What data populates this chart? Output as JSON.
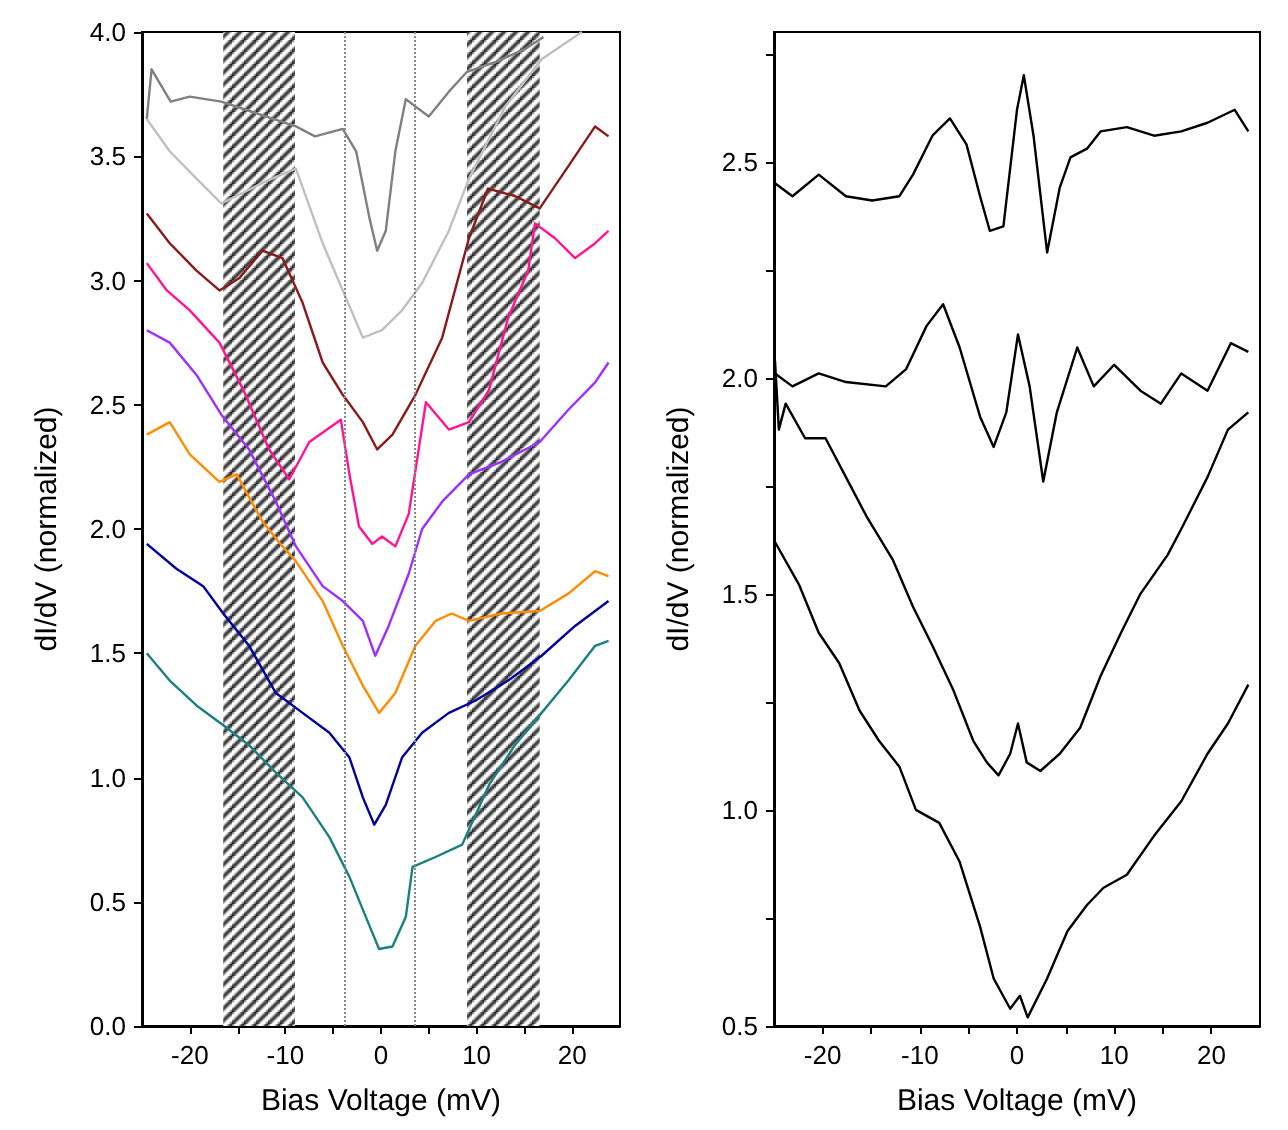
{
  "chart_data": [
    {
      "type": "line",
      "xlabel": "Bias Voltage (mV)",
      "ylabel": "dI/dV (normalized)",
      "xlim": [
        -25,
        25
      ],
      "ylim": [
        0,
        4
      ],
      "xticks": [
        -20,
        {
          "value": -15,
          "label": null
        },
        -10,
        {
          "value": -5,
          "label": null
        },
        0,
        {
          "value": 5,
          "label": null
        },
        10,
        {
          "value": 15,
          "label": null
        },
        20
      ],
      "yticks": [
        {
          "value": 0,
          "label": "0.0"
        },
        0.5,
        {
          "value": 1,
          "label": "1.0"
        },
        1.5,
        {
          "value": 2,
          "label": "2.0"
        },
        2.5,
        {
          "value": 3,
          "label": "3.0"
        },
        3.5,
        {
          "value": 4,
          "label": "4.0"
        }
      ],
      "grid": false,
      "marker": "none",
      "line_style": "solid",
      "bands": [
        {
          "axis": "x",
          "from": -16.5,
          "to": -9,
          "color": "#222222"
        },
        {
          "axis": "x",
          "from": 9,
          "to": 16.6,
          "color": "#222222"
        }
      ],
      "ref_lines": [
        {
          "axis": "x",
          "value": -3.9,
          "color": "#888888",
          "line_style": "dotted"
        },
        {
          "axis": "x",
          "value": 3.6,
          "color": "#888888",
          "line_style": "dotted"
        }
      ],
      "series": [
        {
          "color": "#808080",
          "x": [
            -24.5,
            -24,
            -22,
            -20,
            -16.7,
            -8.9,
            -6.9,
            -4,
            -2.6,
            -1.2,
            -0.4,
            0.5,
            1.5,
            2.6,
            3.6,
            5,
            7.1,
            9,
            12,
            15,
            17
          ],
          "values": [
            3.65,
            3.85,
            3.72,
            3.74,
            3.72,
            3.62,
            3.58,
            3.61,
            3.52,
            3.25,
            3.12,
            3.2,
            3.52,
            3.73,
            3.7,
            3.66,
            3.76,
            3.84,
            3.88,
            3.93,
            3.98
          ]
        },
        {
          "color": "#c0c0c0",
          "x": [
            -24.5,
            -22.1,
            -19.3,
            -16.7,
            -12,
            -8.9,
            -6.1,
            -4,
            -1.9,
            0.1,
            2.2,
            4.3,
            7.1,
            9.2,
            13,
            16.8,
            21
          ],
          "values": [
            3.65,
            3.52,
            3.41,
            3.31,
            3.4,
            3.45,
            3.15,
            2.96,
            2.77,
            2.8,
            2.88,
            2.99,
            3.2,
            3.41,
            3.7,
            3.89,
            4.0
          ]
        },
        {
          "color": "#8b1a1a",
          "x": [
            -24.5,
            -22.1,
            -19.3,
            -16.9,
            -14.8,
            -12.4,
            -10.3,
            -8.2,
            -6.1,
            -4,
            -1.9,
            -0.4,
            1.2,
            3.6,
            6.4,
            9.2,
            11.2,
            14,
            16.6,
            19.6,
            22.4,
            23.8
          ],
          "values": [
            3.27,
            3.15,
            3.04,
            2.96,
            3.01,
            3.12,
            3.09,
            2.91,
            2.67,
            2.54,
            2.43,
            2.32,
            2.38,
            2.54,
            2.77,
            3.17,
            3.37,
            3.34,
            3.29,
            3.46,
            3.62,
            3.58
          ]
        },
        {
          "color": "#ff1493",
          "x": [
            -24.5,
            -22.4,
            -20,
            -16.9,
            -14.4,
            -11.7,
            -9.6,
            -7.5,
            -4.2,
            -3.3,
            -2.3,
            -0.9,
            0.1,
            1.5,
            2.9,
            4.7,
            7.1,
            9.2,
            11.3,
            13.3,
            15.4,
            16.1,
            18.2,
            20.3,
            22.4,
            23.8
          ],
          "values": [
            3.07,
            2.96,
            2.88,
            2.75,
            2.56,
            2.32,
            2.2,
            2.35,
            2.44,
            2.22,
            2.01,
            1.94,
            1.97,
            1.93,
            2.06,
            2.51,
            2.4,
            2.43,
            2.56,
            2.85,
            3.04,
            3.23,
            3.17,
            3.09,
            3.15,
            3.2
          ]
        },
        {
          "color": "#9b30ff",
          "x": [
            -24.5,
            -22.1,
            -19.3,
            -16.7,
            -13.8,
            -11,
            -8.9,
            -6.1,
            -4,
            -1.9,
            -0.6,
            0.8,
            2.9,
            4.3,
            6.4,
            9.2,
            12.6,
            16.6,
            19.6,
            22.4,
            23.8
          ],
          "values": [
            2.8,
            2.75,
            2.62,
            2.46,
            2.32,
            2.11,
            1.93,
            1.77,
            1.71,
            1.63,
            1.49,
            1.61,
            1.82,
            2.0,
            2.11,
            2.22,
            2.27,
            2.35,
            2.48,
            2.59,
            2.67
          ]
        },
        {
          "color": "#ff8c00",
          "x": [
            -24.5,
            -22.1,
            -20,
            -16.9,
            -15.1,
            -12.4,
            -10.3,
            -8.9,
            -6.1,
            -4,
            -1.9,
            -0.2,
            1.5,
            3.6,
            5.7,
            7.4,
            9.2,
            12.6,
            16.6,
            19.6,
            22.4,
            23.8
          ],
          "values": [
            2.38,
            2.43,
            2.3,
            2.19,
            2.22,
            2.03,
            1.93,
            1.87,
            1.71,
            1.53,
            1.37,
            1.26,
            1.34,
            1.53,
            1.63,
            1.66,
            1.63,
            1.66,
            1.67,
            1.74,
            1.83,
            1.81
          ]
        },
        {
          "color": "#0000a0",
          "x": [
            -24.5,
            -21.4,
            -18.6,
            -16.5,
            -13.8,
            -11,
            -8.2,
            -5.4,
            -3.3,
            -1.9,
            -0.7,
            0.5,
            2.2,
            4.3,
            7.1,
            9.9,
            13.3,
            16.8,
            20.3,
            23.8
          ],
          "values": [
            1.94,
            1.84,
            1.77,
            1.66,
            1.53,
            1.34,
            1.26,
            1.18,
            1.08,
            0.92,
            0.81,
            0.89,
            1.08,
            1.18,
            1.26,
            1.31,
            1.39,
            1.49,
            1.61,
            1.71
          ]
        },
        {
          "color": "#1a8080",
          "x": [
            -24.5,
            -22.1,
            -19.3,
            -16.5,
            -13.8,
            -11,
            -8.2,
            -5.4,
            -3.3,
            -1.6,
            -0.2,
            1.2,
            2.6,
            3.3,
            5.7,
            8.5,
            11.3,
            14,
            16.8,
            19.6,
            22.4,
            23.8
          ],
          "values": [
            1.5,
            1.39,
            1.29,
            1.21,
            1.13,
            1.02,
            0.92,
            0.76,
            0.6,
            0.44,
            0.31,
            0.32,
            0.44,
            0.64,
            0.68,
            0.73,
            0.97,
            1.13,
            1.26,
            1.39,
            1.53,
            1.55
          ]
        }
      ]
    },
    {
      "type": "line",
      "xlabel": "Bias Voltage (mV)",
      "ylabel": "dI/dV (normalized)",
      "xlim": [
        -25,
        25
      ],
      "ylim": [
        0.5,
        2.8
      ],
      "xticks": [
        -20,
        {
          "value": -15,
          "label": null
        },
        -10,
        {
          "value": -5,
          "label": null
        },
        0,
        {
          "value": 5,
          "label": null
        },
        10,
        {
          "value": 15,
          "label": null
        },
        20
      ],
      "yticks": [
        0.5,
        {
          "value": 0.75,
          "label": null
        },
        {
          "value": 1,
          "label": "1.0"
        },
        {
          "value": 1.25,
          "label": null
        },
        1.5,
        {
          "value": 1.75,
          "label": null
        },
        {
          "value": 2,
          "label": "2.0"
        },
        {
          "value": 2.25,
          "label": null
        },
        2.5,
        {
          "value": 2.75,
          "label": null
        }
      ],
      "grid": false,
      "marker": "none",
      "line_style": "solid",
      "series": [
        {
          "color": "#000000",
          "x": [
            -24.9,
            -23.1,
            -20.4,
            -17.6,
            -14.9,
            -12.1,
            -10.7,
            -8.7,
            -6.9,
            -5.2,
            -3.8,
            -2.8,
            -1.4,
            0,
            0.7,
            1.7,
            3.1,
            4.4,
            5.5,
            7.2,
            8.6,
            11.3,
            14.1,
            16.9,
            19.6,
            22.4,
            23.8
          ],
          "values": [
            2.45,
            2.42,
            2.47,
            2.42,
            2.41,
            2.42,
            2.47,
            2.56,
            2.6,
            2.54,
            2.42,
            2.34,
            2.35,
            2.62,
            2.7,
            2.56,
            2.29,
            2.44,
            2.51,
            2.53,
            2.57,
            2.58,
            2.56,
            2.57,
            2.59,
            2.62,
            2.57
          ]
        },
        {
          "color": "#000000",
          "x": [
            -24.9,
            -23.1,
            -20.4,
            -17.6,
            -13.5,
            -11.4,
            -9.3,
            -7.6,
            -5.9,
            -3.8,
            -2.4,
            -1.1,
            0.1,
            1.3,
            2.7,
            4.1,
            6.2,
            7.9,
            10,
            12.7,
            14.8,
            16.9,
            19.6,
            22,
            23.8
          ],
          "values": [
            2.01,
            1.98,
            2.01,
            1.99,
            1.98,
            2.02,
            2.12,
            2.17,
            2.07,
            1.91,
            1.84,
            1.92,
            2.1,
            1.98,
            1.76,
            1.92,
            2.07,
            1.98,
            2.03,
            1.97,
            1.94,
            2.01,
            1.97,
            2.08,
            2.06
          ]
        },
        {
          "color": "#000000",
          "x": [
            -24.9,
            -24.5,
            -23.8,
            -21.8,
            -19.7,
            -17.6,
            -15.5,
            -12.8,
            -10.7,
            -8.7,
            -6.6,
            -4.5,
            -3.1,
            -1.9,
            -0.7,
            0.1,
            1,
            2.4,
            4.4,
            6.5,
            8.6,
            10.7,
            12.7,
            15.5,
            16.9,
            19.6,
            21.7,
            23.8
          ],
          "values": [
            2.04,
            1.88,
            1.94,
            1.86,
            1.86,
            1.77,
            1.68,
            1.58,
            1.47,
            1.38,
            1.28,
            1.16,
            1.11,
            1.08,
            1.13,
            1.2,
            1.11,
            1.09,
            1.13,
            1.19,
            1.31,
            1.41,
            1.5,
            1.59,
            1.65,
            1.77,
            1.88,
            1.92
          ]
        },
        {
          "color": "#000000",
          "x": [
            -24.9,
            -22.4,
            -20.4,
            -18.3,
            -16.2,
            -14.2,
            -12.1,
            -10.4,
            -8,
            -5.9,
            -3.8,
            -2.4,
            -0.7,
            0.3,
            1.1,
            3.1,
            5.2,
            7.2,
            8.9,
            11.3,
            14.1,
            16.9,
            19.6,
            21.7,
            23.8
          ],
          "values": [
            1.62,
            1.52,
            1.41,
            1.34,
            1.23,
            1.16,
            1.1,
            1.0,
            0.97,
            0.88,
            0.73,
            0.61,
            0.54,
            0.57,
            0.52,
            0.61,
            0.72,
            0.78,
            0.82,
            0.85,
            0.94,
            1.02,
            1.13,
            1.2,
            1.29
          ]
        }
      ]
    }
  ]
}
